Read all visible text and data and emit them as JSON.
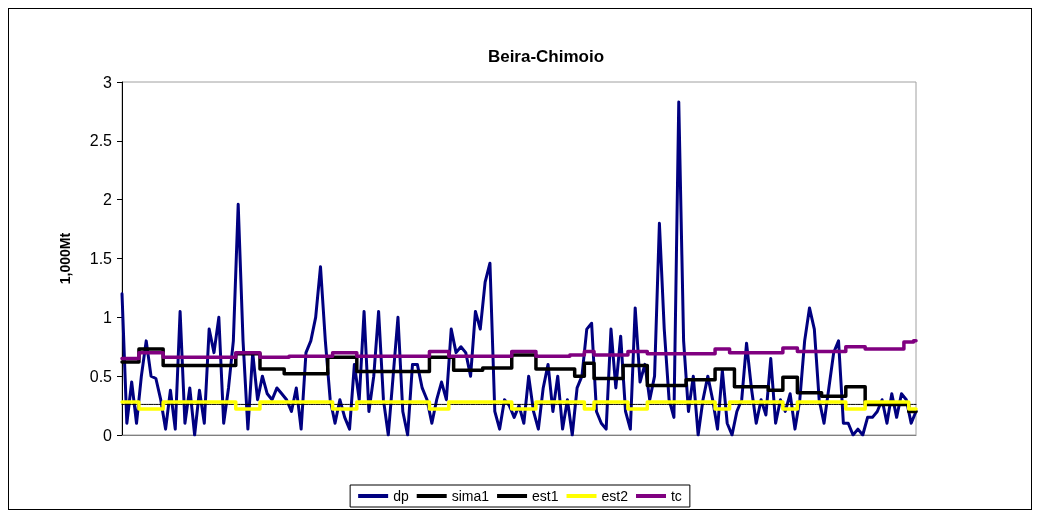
{
  "chart_data": {
    "type": "line",
    "title": "Beira-Chimoio",
    "ylabel": "1,000Mt",
    "categories": [
      null,
      null,
      null,
      null,
      null,
      null,
      null,
      null,
      null,
      null,
      null,
      null,
      null,
      null,
      null,
      null,
      null,
      null,
      null,
      null,
      null,
      null,
      null,
      null,
      null,
      null,
      null,
      null,
      null,
      null,
      null,
      null,
      null,
      null,
      null,
      null,
      null,
      null,
      null,
      null,
      null,
      null,
      null,
      null,
      null,
      null,
      null,
      null,
      null,
      null,
      null,
      null,
      null,
      null,
      null,
      null,
      null,
      null,
      null,
      null,
      null,
      null,
      null,
      null,
      null,
      null,
      null,
      null,
      null,
      null,
      null,
      null,
      null,
      null,
      null,
      null,
      null,
      null,
      null,
      null,
      null,
      null,
      null,
      null,
      null,
      null,
      null,
      null,
      null,
      null,
      null,
      null,
      null,
      null,
      null,
      null,
      null,
      null,
      null,
      null,
      null,
      null,
      null,
      null,
      null,
      null,
      null,
      null,
      null,
      null,
      null,
      null,
      null,
      null,
      null,
      null,
      null,
      null,
      null,
      null,
      null,
      null,
      null,
      null,
      null,
      null,
      null,
      null,
      null,
      null,
      null,
      null,
      null,
      null,
      null,
      null,
      null,
      null,
      null,
      null,
      null,
      null,
      null,
      null,
      null,
      null,
      null,
      null,
      null,
      null,
      null,
      null,
      null,
      null,
      null,
      null,
      null,
      null,
      null,
      null,
      null,
      null,
      null,
      null,
      null
    ],
    "ylim": [
      0,
      3
    ],
    "yticks": [
      0,
      0.5,
      1,
      1.5,
      2,
      2.5,
      3
    ],
    "grid": false,
    "legend": "bottom",
    "marker": "none",
    "line_style": "solid",
    "series": [
      {
        "name": "dp",
        "type": "line",
        "color": "#000080",
        "values": [
          1.2,
          0.1,
          0.45,
          0.1,
          0.5,
          0.8,
          0.5,
          0.48,
          0.3,
          0.05,
          0.38,
          0.05,
          1.05,
          0.1,
          0.4,
          0.0,
          0.38,
          0.1,
          0.9,
          0.7,
          1.0,
          0.1,
          0.4,
          0.8,
          1.96,
          0.8,
          0.05,
          0.7,
          0.3,
          0.5,
          0.35,
          0.3,
          0.4,
          0.35,
          0.3,
          0.2,
          0.4,
          0.05,
          0.7,
          0.8,
          1.0,
          1.43,
          0.8,
          0.3,
          0.1,
          0.3,
          0.15,
          0.05,
          0.6,
          0.3,
          1.05,
          0.2,
          0.5,
          1.05,
          0.3,
          0.0,
          0.5,
          1.0,
          0.2,
          0.0,
          0.6,
          0.6,
          0.4,
          0.3,
          0.1,
          0.3,
          0.45,
          0.3,
          0.9,
          0.7,
          0.75,
          0.7,
          0.5,
          1.05,
          0.9,
          1.3,
          1.46,
          0.2,
          0.05,
          0.3,
          0.25,
          0.15,
          0.25,
          0.1,
          0.5,
          0.2,
          0.05,
          0.4,
          0.6,
          0.2,
          0.5,
          0.05,
          0.3,
          0.0,
          0.4,
          0.5,
          0.9,
          0.95,
          0.2,
          0.1,
          0.05,
          0.9,
          0.4,
          0.84,
          0.2,
          0.05,
          1.08,
          0.45,
          0.6,
          0.3,
          0.5,
          1.8,
          0.9,
          0.3,
          0.15,
          2.83,
          0.8,
          0.2,
          0.5,
          0.0,
          0.3,
          0.5,
          0.3,
          0.05,
          0.55,
          0.1,
          0.0,
          0.2,
          0.3,
          0.78,
          0.4,
          0.1,
          0.3,
          0.17,
          0.65,
          0.1,
          0.3,
          0.2,
          0.35,
          0.05,
          0.3,
          0.8,
          1.08,
          0.9,
          0.3,
          0.1,
          0.4,
          0.7,
          0.8,
          0.1,
          0.1,
          0.0,
          0.05,
          0.0,
          0.15,
          0.15,
          0.2,
          0.3,
          0.1,
          0.35,
          0.15,
          0.35,
          0.3,
          0.1,
          0.2
        ]
      },
      {
        "name": "sima1",
        "type": "step",
        "color": "#000000",
        "values": [
          0.62,
          0.62,
          0.62,
          0.62,
          0.73,
          0.73,
          0.73,
          0.73,
          0.73,
          0.59,
          0.59,
          0.59,
          0.59,
          0.59,
          0.59,
          0.59,
          0.59,
          0.59,
          0.59,
          0.59,
          0.59,
          0.59,
          0.59,
          0.59,
          0.69,
          0.69,
          0.69,
          0.69,
          0.69,
          0.56,
          0.56,
          0.56,
          0.56,
          0.56,
          0.52,
          0.52,
          0.52,
          0.52,
          0.52,
          0.52,
          0.52,
          0.52,
          0.52,
          0.66,
          0.66,
          0.66,
          0.66,
          0.66,
          0.66,
          0.54,
          0.54,
          0.54,
          0.54,
          0.54,
          0.54,
          0.54,
          0.54,
          0.54,
          0.54,
          0.54,
          0.54,
          0.54,
          0.54,
          0.54,
          0.66,
          0.66,
          0.66,
          0.66,
          0.66,
          0.55,
          0.55,
          0.55,
          0.55,
          0.55,
          0.55,
          0.57,
          0.57,
          0.57,
          0.57,
          0.57,
          0.57,
          0.68,
          0.68,
          0.68,
          0.68,
          0.68,
          0.56,
          0.56,
          0.56,
          0.56,
          0.56,
          0.56,
          0.56,
          0.56,
          0.5,
          0.5,
          0.61,
          0.61,
          0.48,
          0.48,
          0.48,
          0.48,
          0.48,
          0.48,
          0.59,
          0.59,
          0.59,
          0.59,
          0.59,
          0.42,
          0.42,
          0.42,
          0.42,
          0.42,
          0.42,
          0.42,
          0.42,
          0.47,
          0.47,
          0.47,
          0.47,
          0.47,
          0.47,
          0.56,
          0.56,
          0.56,
          0.56,
          0.41,
          0.41,
          0.41,
          0.41,
          0.41,
          0.41,
          0.41,
          0.38,
          0.38,
          0.38,
          0.49,
          0.49,
          0.49,
          0.36,
          0.36,
          0.36,
          0.36,
          0.36,
          0.33,
          0.33,
          0.33,
          0.33,
          0.33,
          0.41,
          0.41,
          0.41,
          0.41,
          0.26,
          0.26,
          0.26,
          0.26,
          0.26,
          0.26,
          0.26,
          0.26,
          0.26,
          0.2,
          0.2
        ]
      },
      {
        "name": "est1",
        "type": "step",
        "color": "#000000",
        "values": [
          0.26,
          0.26,
          0.26,
          0.26,
          0.26,
          0.26,
          0.26,
          0.26,
          0.26,
          0.26,
          0.26,
          0.26,
          0.26,
          0.26,
          0.26,
          0.26,
          0.26,
          0.26,
          0.26,
          0.26,
          0.26,
          0.26,
          0.26,
          0.26,
          0.26,
          0.26,
          0.26,
          0.26,
          0.26,
          0.26,
          0.26,
          0.26,
          0.26,
          0.26,
          0.26,
          0.26,
          0.26,
          0.26,
          0.26,
          0.26,
          0.26,
          0.26,
          0.26,
          0.26,
          0.26,
          0.26,
          0.26,
          0.26,
          0.26,
          0.26,
          0.26,
          0.26,
          0.26,
          0.26,
          0.26,
          0.26,
          0.26,
          0.26,
          0.26,
          0.26,
          0.26,
          0.26,
          0.26,
          0.26,
          0.26,
          0.26,
          0.26,
          0.26,
          0.26,
          0.26,
          0.26,
          0.26,
          0.26,
          0.26,
          0.26,
          0.26,
          0.26,
          0.26,
          0.26,
          0.26,
          0.26,
          0.26,
          0.26,
          0.26,
          0.26,
          0.26,
          0.26,
          0.26,
          0.26,
          0.26,
          0.26,
          0.26,
          0.26,
          0.26,
          0.26,
          0.26,
          0.26,
          0.26,
          0.26,
          0.26,
          0.26,
          0.26,
          0.26,
          0.26,
          0.26,
          0.26,
          0.26,
          0.26,
          0.26,
          0.26,
          0.26,
          0.26,
          0.26,
          0.26,
          0.26,
          0.26,
          0.26,
          0.26,
          0.26,
          0.26,
          0.26,
          0.26,
          0.26,
          0.26,
          0.26,
          0.26,
          0.26,
          0.26,
          0.26,
          0.26,
          0.26,
          0.26,
          0.26,
          0.26,
          0.26,
          0.26,
          0.26,
          0.26,
          0.26,
          0.26,
          0.26,
          0.26,
          0.26,
          0.26,
          0.26,
          0.26,
          0.26,
          0.26,
          0.26,
          0.26,
          0.26,
          0.26,
          0.26,
          0.26,
          0.26,
          0.26,
          0.26,
          0.26,
          0.26,
          0.26,
          0.26,
          0.26,
          0.26,
          0.26,
          0.26
        ]
      },
      {
        "name": "est2",
        "type": "step",
        "color": "#ffff00",
        "values": [
          0.28,
          0.28,
          0.28,
          0.28,
          0.22,
          0.22,
          0.22,
          0.22,
          0.22,
          0.28,
          0.28,
          0.28,
          0.28,
          0.28,
          0.28,
          0.28,
          0.28,
          0.28,
          0.28,
          0.28,
          0.28,
          0.28,
          0.28,
          0.28,
          0.22,
          0.22,
          0.22,
          0.22,
          0.22,
          0.28,
          0.28,
          0.28,
          0.28,
          0.28,
          0.28,
          0.28,
          0.28,
          0.28,
          0.28,
          0.28,
          0.28,
          0.28,
          0.28,
          0.28,
          0.22,
          0.22,
          0.22,
          0.22,
          0.22,
          0.28,
          0.28,
          0.28,
          0.28,
          0.28,
          0.28,
          0.28,
          0.28,
          0.28,
          0.28,
          0.28,
          0.28,
          0.28,
          0.28,
          0.28,
          0.22,
          0.22,
          0.22,
          0.22,
          0.28,
          0.28,
          0.28,
          0.28,
          0.28,
          0.28,
          0.28,
          0.28,
          0.28,
          0.28,
          0.28,
          0.28,
          0.28,
          0.22,
          0.22,
          0.22,
          0.22,
          0.22,
          0.28,
          0.28,
          0.28,
          0.28,
          0.28,
          0.28,
          0.28,
          0.28,
          0.28,
          0.28,
          0.22,
          0.22,
          0.28,
          0.28,
          0.28,
          0.28,
          0.28,
          0.28,
          0.28,
          0.22,
          0.22,
          0.22,
          0.22,
          0.28,
          0.28,
          0.28,
          0.28,
          0.28,
          0.28,
          0.28,
          0.28,
          0.28,
          0.28,
          0.28,
          0.28,
          0.28,
          0.28,
          0.22,
          0.22,
          0.22,
          0.28,
          0.28,
          0.28,
          0.28,
          0.28,
          0.28,
          0.28,
          0.28,
          0.28,
          0.28,
          0.28,
          0.22,
          0.22,
          0.22,
          0.28,
          0.28,
          0.28,
          0.28,
          0.28,
          0.28,
          0.28,
          0.28,
          0.28,
          0.28,
          0.22,
          0.22,
          0.22,
          0.22,
          0.28,
          0.28,
          0.28,
          0.28,
          0.28,
          0.28,
          0.28,
          0.28,
          0.28,
          0.22,
          0.22
        ]
      },
      {
        "name": "tc",
        "type": "step",
        "color": "#800080",
        "values": [
          0.65,
          0.65,
          0.65,
          0.65,
          0.7,
          0.7,
          0.7,
          0.7,
          0.7,
          0.66,
          0.66,
          0.66,
          0.66,
          0.66,
          0.66,
          0.66,
          0.66,
          0.66,
          0.66,
          0.66,
          0.66,
          0.66,
          0.66,
          0.66,
          0.7,
          0.7,
          0.7,
          0.7,
          0.7,
          0.66,
          0.66,
          0.66,
          0.66,
          0.66,
          0.66,
          0.67,
          0.67,
          0.67,
          0.67,
          0.67,
          0.67,
          0.67,
          0.67,
          0.67,
          0.7,
          0.7,
          0.7,
          0.7,
          0.7,
          0.67,
          0.67,
          0.67,
          0.67,
          0.67,
          0.67,
          0.67,
          0.67,
          0.67,
          0.67,
          0.67,
          0.67,
          0.67,
          0.67,
          0.67,
          0.71,
          0.71,
          0.71,
          0.71,
          0.67,
          0.67,
          0.67,
          0.67,
          0.67,
          0.67,
          0.67,
          0.67,
          0.67,
          0.67,
          0.67,
          0.67,
          0.67,
          0.71,
          0.71,
          0.71,
          0.71,
          0.71,
          0.67,
          0.67,
          0.67,
          0.67,
          0.67,
          0.67,
          0.67,
          0.68,
          0.68,
          0.68,
          0.71,
          0.71,
          0.68,
          0.68,
          0.68,
          0.68,
          0.68,
          0.68,
          0.68,
          0.71,
          0.71,
          0.71,
          0.71,
          0.69,
          0.69,
          0.69,
          0.69,
          0.69,
          0.69,
          0.69,
          0.69,
          0.69,
          0.69,
          0.69,
          0.69,
          0.69,
          0.69,
          0.73,
          0.73,
          0.73,
          0.7,
          0.7,
          0.7,
          0.7,
          0.7,
          0.7,
          0.7,
          0.7,
          0.7,
          0.7,
          0.7,
          0.74,
          0.74,
          0.74,
          0.71,
          0.71,
          0.71,
          0.71,
          0.71,
          0.71,
          0.71,
          0.71,
          0.71,
          0.71,
          0.75,
          0.75,
          0.75,
          0.75,
          0.73,
          0.73,
          0.73,
          0.73,
          0.73,
          0.73,
          0.73,
          0.73,
          0.79,
          0.79,
          0.8
        ]
      }
    ]
  }
}
